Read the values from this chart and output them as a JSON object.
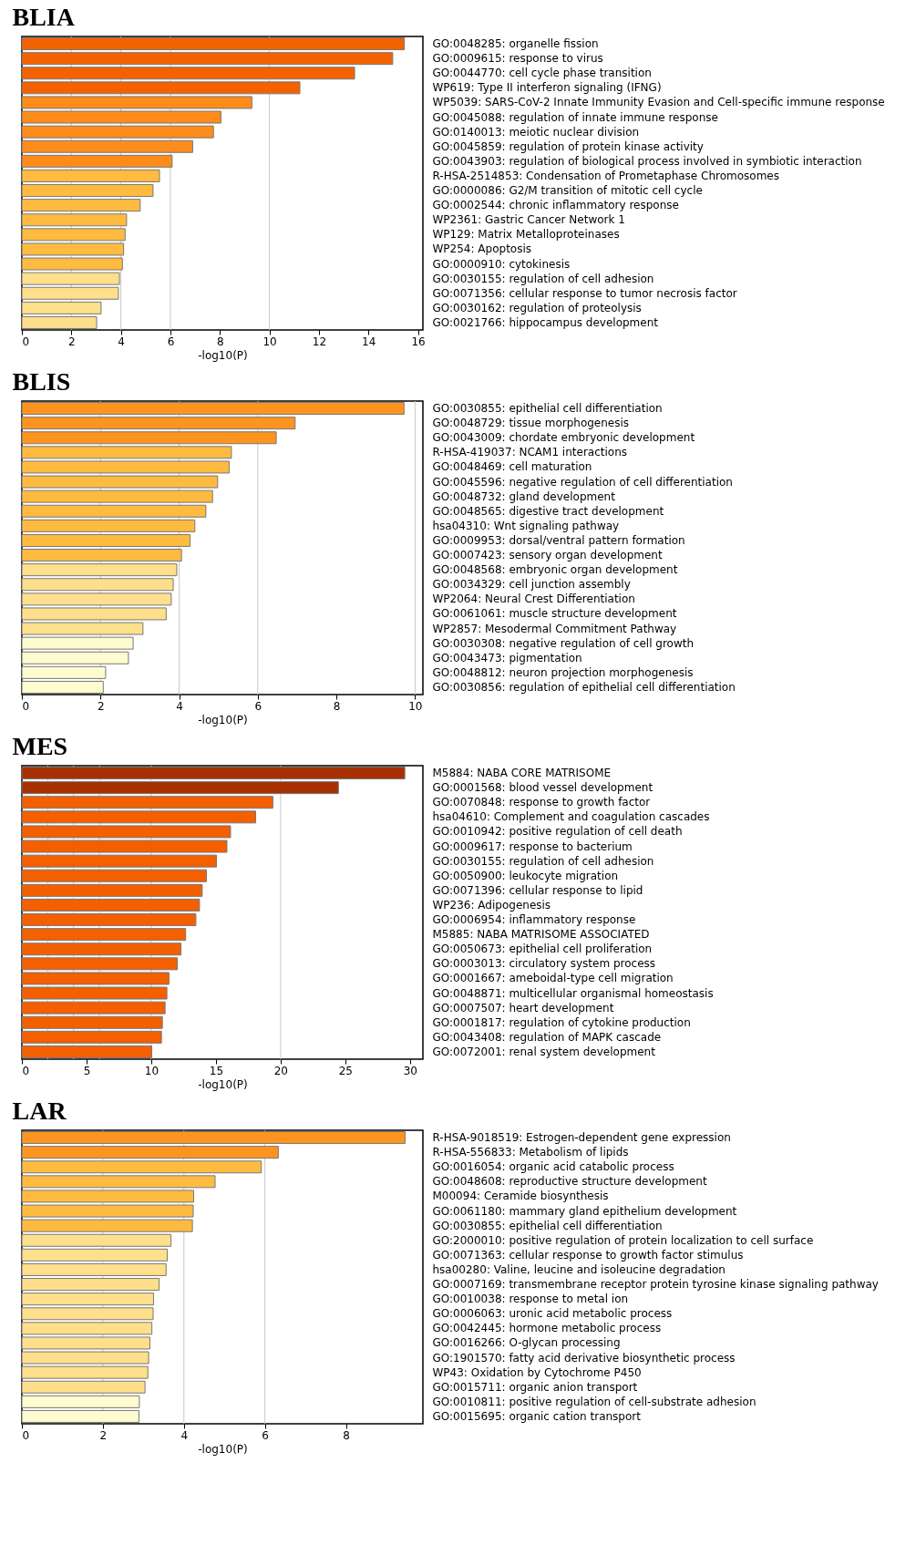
{
  "chart_data": [
    {
      "type": "bar",
      "orientation": "horizontal",
      "title": "BLIA",
      "xlabel": "-log10(P)",
      "categories": [
        "GO:0048285: organelle fission",
        "GO:0009615: response to virus",
        "GO:0044770: cell cycle phase transition",
        "WP619: Type II interferon signaling (IFNG)",
        "WP5039: SARS-CoV-2 Innate Immunity Evasion and Cell-specific immune response",
        "GO:0045088: regulation of innate immune response",
        "GO:0140013: meiotic nuclear division",
        "GO:0045859: regulation of protein kinase activity",
        "GO:0043903: regulation of biological process involved in symbiotic interaction",
        "R-HSA-2514853: Condensation of Prometaphase Chromosomes",
        "GO:0000086: G2/M transition of mitotic cell cycle",
        "GO:0002544: chronic inflammatory response",
        "WP2361: Gastric Cancer Network 1",
        "WP129: Matrix Metalloproteinases",
        "WP254: Apoptosis",
        "GO:0000910: cytokinesis",
        "GO:0030155: regulation of cell adhesion",
        "GO:0071356: cellular response to tumor necrosis factor",
        "GO:0030162: regulation of proteolysis",
        "GO:0021766: hippocampus development"
      ],
      "values": [
        15.45,
        14.98,
        13.44,
        11.23,
        9.29,
        8.04,
        7.74,
        6.9,
        6.07,
        5.56,
        5.3,
        4.78,
        4.23,
        4.17,
        4.11,
        4.06,
        3.94,
        3.9,
        3.2,
        3.02
      ],
      "colors": [
        "#f46200",
        "#f46200",
        "#f46200",
        "#f46200",
        "#fe8c1a",
        "#fe8c1a",
        "#fe8c1a",
        "#fe8c1a",
        "#fe8c1a",
        "#ffbb40",
        "#ffbb40",
        "#ffbb40",
        "#ffbb40",
        "#ffbb40",
        "#ffbb40",
        "#ffbb40",
        "#fedf8b",
        "#fedf8b",
        "#fedf8b",
        "#fedf8b"
      ],
      "xlim": [
        0,
        16.2
      ],
      "xticks": [
        0,
        2,
        4,
        6,
        8,
        10,
        12,
        14,
        16
      ],
      "ref_lines": [
        {
          "axis": "x",
          "value": 2,
          "color": "#c8c8c8"
        },
        {
          "axis": "x",
          "value": 4,
          "color": "#c8c8c8"
        },
        {
          "axis": "x",
          "value": 6,
          "color": "#c8c8c8"
        },
        {
          "axis": "x",
          "value": 10,
          "color": "#c8c8c8"
        }
      ]
    },
    {
      "type": "bar",
      "orientation": "horizontal",
      "title": "BLIS",
      "xlabel": "-log10(P)",
      "categories": [
        "GO:0030855: epithelial cell differentiation",
        "GO:0048729: tissue morphogenesis",
        "GO:0043009: chordate embryonic development",
        "R-HSA-419037: NCAM1 interactions",
        "GO:0048469: cell maturation",
        "GO:0045596: negative regulation of cell differentiation",
        "GO:0048732: gland development",
        "GO:0048565: digestive tract development",
        "hsa04310: Wnt signaling pathway",
        "GO:0009953: dorsal/ventral pattern formation",
        "GO:0007423: sensory organ development",
        "GO:0048568: embryonic organ development",
        "GO:0034329: cell junction assembly",
        "WP2064: Neural Crest Differentiation",
        "GO:0061061: muscle structure development",
        "WP2857: Mesodermal Commitment Pathway",
        "GO:0030308: negative regulation of cell growth",
        "GO:0043473: pigmentation",
        "GO:0048812: neuron projection morphogenesis",
        "GO:0030856: regulation of epithelial cell differentiation"
      ],
      "values": [
        9.72,
        6.95,
        6.47,
        5.33,
        5.27,
        4.98,
        4.85,
        4.68,
        4.4,
        4.28,
        4.06,
        3.94,
        3.85,
        3.8,
        3.67,
        3.08,
        2.83,
        2.71,
        2.13,
        2.07
      ],
      "colors": [
        "#fe9420",
        "#fe9420",
        "#fe9420",
        "#ffbb40",
        "#ffbb40",
        "#ffbb40",
        "#ffbb40",
        "#ffbb40",
        "#ffbb40",
        "#ffbb40",
        "#ffbb40",
        "#fedf8b",
        "#fedf8b",
        "#fedf8b",
        "#fedf8b",
        "#fedf8b",
        "#fffbd0",
        "#fffbd0",
        "#fffbd0",
        "#fffbd0"
      ],
      "xlim": [
        0,
        10.2
      ],
      "xticks": [
        0,
        2,
        4,
        6,
        8,
        10
      ],
      "ref_lines": [
        {
          "axis": "x",
          "value": 2,
          "color": "#c8c8c8"
        },
        {
          "axis": "x",
          "value": 4,
          "color": "#c8c8c8"
        },
        {
          "axis": "x",
          "value": 6,
          "color": "#c8c8c8"
        },
        {
          "axis": "x",
          "value": 10,
          "color": "#c8c8c8"
        }
      ]
    },
    {
      "type": "bar",
      "orientation": "horizontal",
      "title": "MES",
      "xlabel": "-log10(P)",
      "categories": [
        "M5884: NABA CORE MATRISOME",
        "GO:0001568: blood vessel development",
        "GO:0070848: response to growth factor",
        "hsa04610: Complement and coagulation cascades",
        "GO:0010942: positive regulation of cell death",
        "GO:0009617: response to bacterium",
        "GO:0030155: regulation of cell adhesion",
        "GO:0050900: leukocyte migration",
        "GO:0071396: cellular response to lipid",
        "WP236: Adipogenesis",
        "GO:0006954: inflammatory response",
        "M5885: NABA MATRISOME ASSOCIATED",
        "GO:0050673: epithelial cell proliferation",
        "GO:0003013: circulatory system process",
        "GO:0001667: ameboidal-type cell migration",
        "GO:0048871: multicellular organismal homeostasis",
        "GO:0007507: heart development",
        "GO:0001817: regulation of cytokine production",
        "GO:0043408: regulation of MAPK cascade",
        "GO:0072001: renal system development"
      ],
      "values": [
        29.6,
        24.47,
        19.4,
        18.07,
        16.13,
        15.85,
        15.04,
        14.27,
        13.94,
        13.73,
        13.45,
        12.66,
        12.3,
        12.02,
        11.37,
        11.21,
        11.07,
        10.86,
        10.79,
        10.04
      ],
      "colors": [
        "#a83000",
        "#a83000",
        "#f45f00",
        "#f45f00",
        "#f45f00",
        "#f45f00",
        "#f45f00",
        "#f45f00",
        "#f45f00",
        "#f45f00",
        "#f45f00",
        "#f45f00",
        "#f45f00",
        "#f45f00",
        "#f45f00",
        "#f45f00",
        "#f45f00",
        "#f45f00",
        "#f45f00",
        "#f45f00"
      ],
      "xlim": [
        0,
        31
      ],
      "xticks": [
        0,
        5,
        10,
        15,
        20,
        25,
        30
      ],
      "ref_lines": [
        {
          "axis": "x",
          "value": 2,
          "color": "#c8c8c8"
        },
        {
          "axis": "x",
          "value": 4,
          "color": "#c8c8c8"
        },
        {
          "axis": "x",
          "value": 6,
          "color": "#c8c8c8"
        },
        {
          "axis": "x",
          "value": 10,
          "color": "#c8c8c8"
        },
        {
          "axis": "x",
          "value": 20,
          "color": "#c8c8c8"
        }
      ]
    },
    {
      "type": "bar",
      "orientation": "horizontal",
      "title": "LAR",
      "xlabel": "-log10(P)",
      "categories": [
        "R-HSA-9018519: Estrogen-dependent gene expression",
        "R-HSA-556833: Metabolism of lipids",
        "GO:0016054: organic acid catabolic process",
        "GO:0048608: reproductive structure development",
        "M00094: Ceramide biosynthesis",
        "GO:0061180: mammary gland epithelium development",
        "GO:0030855: epithelial cell differentiation",
        "GO:2000010: positive regulation of protein localization to cell surface",
        "GO:0071363: cellular response to growth factor stimulus",
        "hsa00280: Valine, leucine and isoleucine degradation",
        "GO:0007169: transmembrane receptor protein tyrosine kinase signaling pathway",
        "GO:0010038: response to metal ion",
        "GO:0006063: uronic acid metabolic process",
        "GO:0042445: hormone metabolic process",
        "GO:0016266: O-glycan processing",
        "GO:1901570: fatty acid derivative biosynthetic process",
        "WP43: Oxidation by Cytochrome P450",
        "GO:0015711: organic anion transport",
        "GO:0010811: positive regulation of cell-substrate adhesion",
        "GO:0015695: organic cation transport"
      ],
      "values": [
        9.46,
        6.33,
        5.91,
        4.77,
        4.24,
        4.23,
        4.21,
        3.68,
        3.59,
        3.56,
        3.39,
        3.25,
        3.24,
        3.21,
        3.16,
        3.13,
        3.11,
        3.04,
        2.9,
        2.89
      ],
      "colors": [
        "#fe9420",
        "#fe9420",
        "#ffbb40",
        "#ffbb40",
        "#ffbb40",
        "#ffbb40",
        "#ffbb40",
        "#fedf8b",
        "#fedf8b",
        "#fedf8b",
        "#fedf8b",
        "#fedf8b",
        "#fedf8b",
        "#fedf8b",
        "#fedf8b",
        "#fedf8b",
        "#fedf8b",
        "#fedf8b",
        "#fffbd0",
        "#fffbd0"
      ],
      "xlim": [
        0,
        9.9
      ],
      "xticks": [
        0,
        2,
        4,
        6,
        8
      ],
      "ref_lines": [
        {
          "axis": "x",
          "value": 2,
          "color": "#c8c8c8"
        },
        {
          "axis": "x",
          "value": 4,
          "color": "#c8c8c8"
        },
        {
          "axis": "x",
          "value": 6,
          "color": "#c8c8c8"
        }
      ]
    }
  ]
}
